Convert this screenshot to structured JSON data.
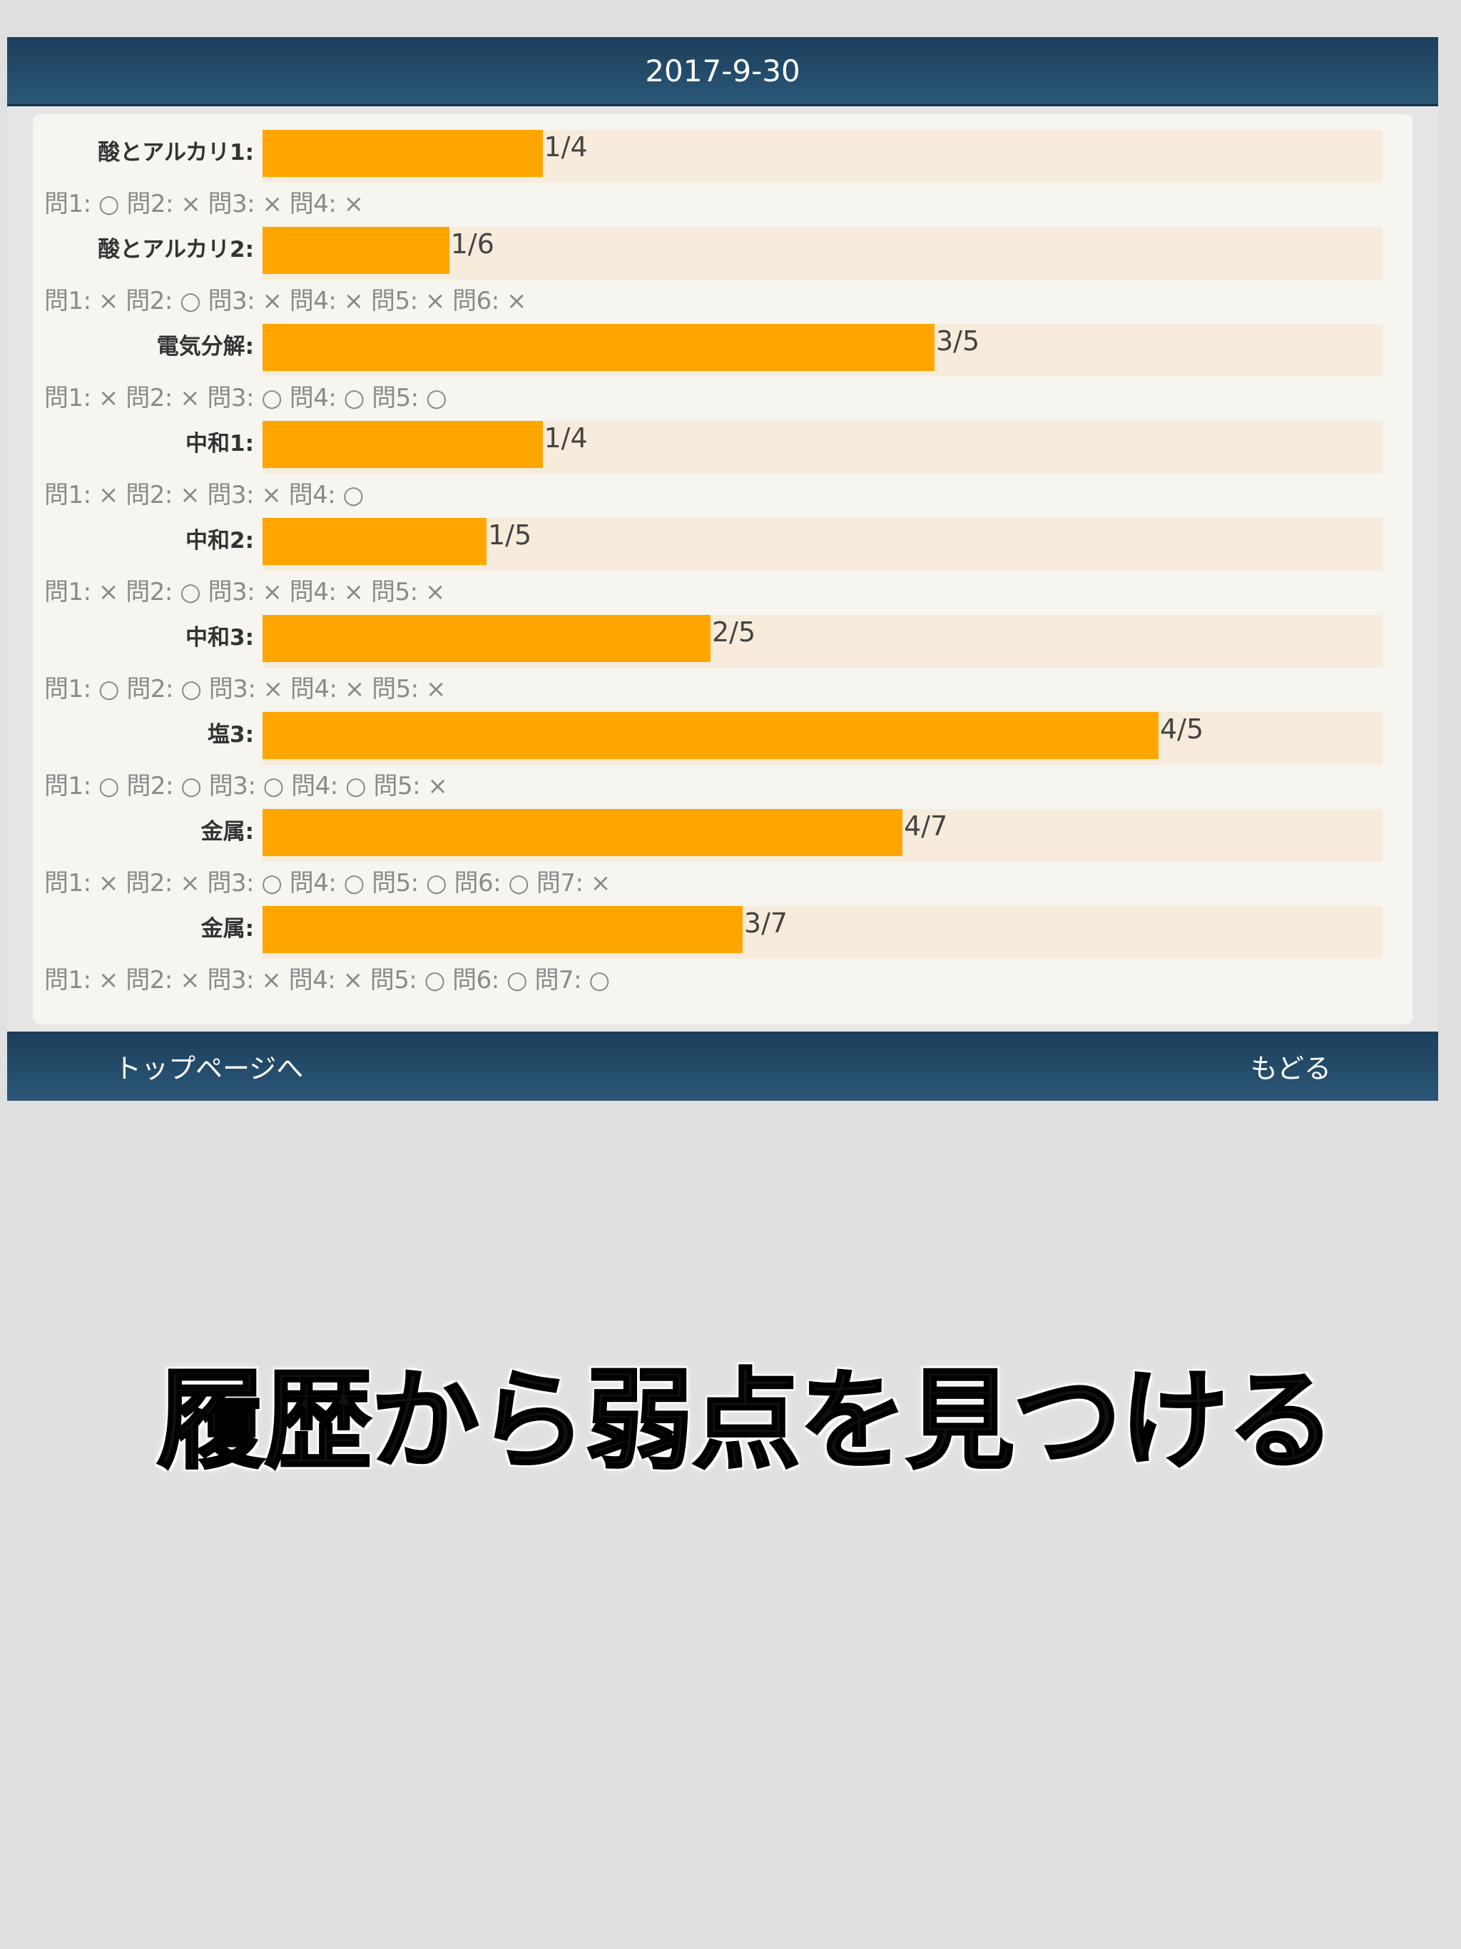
{
  "header": {
    "date": "2017-9-30"
  },
  "topics": [
    {
      "label": "酸とアルカリ1:",
      "score": "1/4",
      "fraction": 0.25,
      "answers": "問1: ○ 問2: × 問3: × 問4: ×"
    },
    {
      "label": "酸とアルカリ2:",
      "score": "1/6",
      "fraction": 0.1667,
      "answers": "問1: × 問2: ○ 問3: × 問4: × 問5: × 問6: ×"
    },
    {
      "label": "電気分解:",
      "score": "3/5",
      "fraction": 0.6,
      "answers": "問1: × 問2: × 問3: ○ 問4: ○ 問5: ○"
    },
    {
      "label": "中和1:",
      "score": "1/4",
      "fraction": 0.25,
      "answers": "問1: × 問2: × 問3: × 問4: ○"
    },
    {
      "label": "中和2:",
      "score": "1/5",
      "fraction": 0.2,
      "answers": "問1: × 問2: ○ 問3: × 問4: × 問5: ×"
    },
    {
      "label": "中和3:",
      "score": "2/5",
      "fraction": 0.4,
      "answers": "問1: ○ 問2: ○ 問3: × 問4: × 問5: ×"
    },
    {
      "label": "塩3:",
      "score": "4/5",
      "fraction": 0.8,
      "answers": "問1: ○ 問2: ○ 問3: ○ 問4: ○ 問5: ×"
    },
    {
      "label": "金属:",
      "score": "4/7",
      "fraction": 0.5714,
      "answers": "問1: × 問2: × 問3: ○ 問4: ○ 問5: ○ 問6: ○ 問7: ×"
    },
    {
      "label": "金属:",
      "score": "3/7",
      "fraction": 0.4286,
      "answers": "問1: × 問2: × 問3: × 問4: × 問5: ○ 問6: ○ 問7: ○"
    }
  ],
  "footer": {
    "top_page_label": "トップページへ",
    "back_label": "もどる"
  },
  "caption": "履歴から弱点を見つける",
  "colors": {
    "bar": "#ffa500",
    "track": "#f7ecdb",
    "header": "#1f4662"
  }
}
